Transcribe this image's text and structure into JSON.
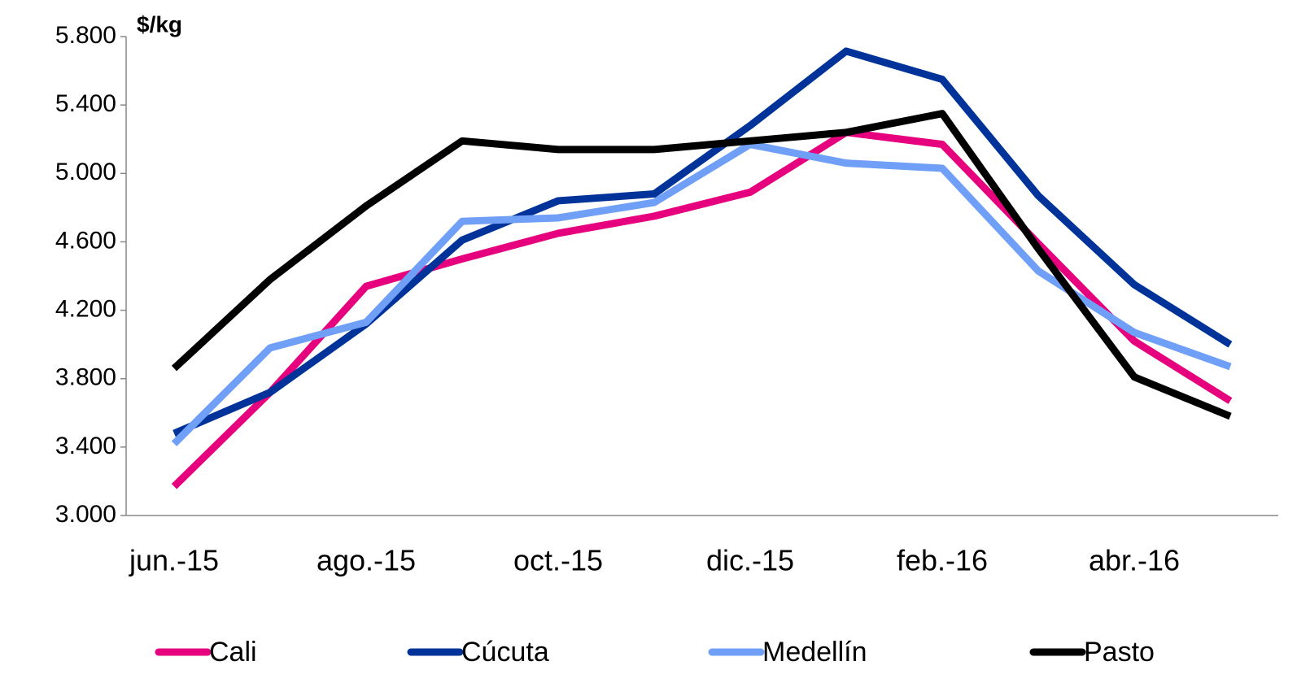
{
  "chart_data": {
    "type": "line",
    "y_label": "$/kg",
    "categories": [
      "jun.-15",
      null,
      "ago.-15",
      null,
      "oct.-15",
      null,
      "dic.-15",
      null,
      "feb.-16",
      null,
      "abr.-16",
      null
    ],
    "series": [
      {
        "name": "Cali",
        "color": "#e6007e",
        "values": [
          3170,
          3720,
          4340,
          4500,
          4650,
          4750,
          4890,
          5240,
          5170,
          4590,
          4020,
          3670
        ]
      },
      {
        "name": "Cúcuta",
        "color": "#003399",
        "values": [
          3480,
          3720,
          4120,
          4610,
          4840,
          4880,
          5280,
          5715,
          5550,
          4870,
          4350,
          4000
        ]
      },
      {
        "name": "Medellín",
        "color": "#6f9ff7",
        "values": [
          3420,
          3980,
          4130,
          4720,
          4740,
          4830,
          5170,
          5060,
          5030,
          4430,
          4070,
          3870
        ]
      },
      {
        "name": "Pasto",
        "color": "#000000",
        "values": [
          3860,
          4380,
          4810,
          5190,
          5140,
          5140,
          5190,
          5240,
          5350,
          4560,
          3810,
          3580
        ]
      }
    ],
    "ylim": [
      3000,
      5800
    ],
    "yticks": [
      {
        "value": 3000,
        "label": "3.000"
      },
      {
        "value": 3400,
        "label": "3.400"
      },
      {
        "value": 3800,
        "label": "3.800"
      },
      {
        "value": 4200,
        "label": "4.200"
      },
      {
        "value": 4600,
        "label": "4.600"
      },
      {
        "value": 5000,
        "label": "5.000"
      },
      {
        "value": 5400,
        "label": "5.400"
      },
      {
        "value": 5800,
        "label": "5.800"
      }
    ],
    "legend": "bottom"
  }
}
